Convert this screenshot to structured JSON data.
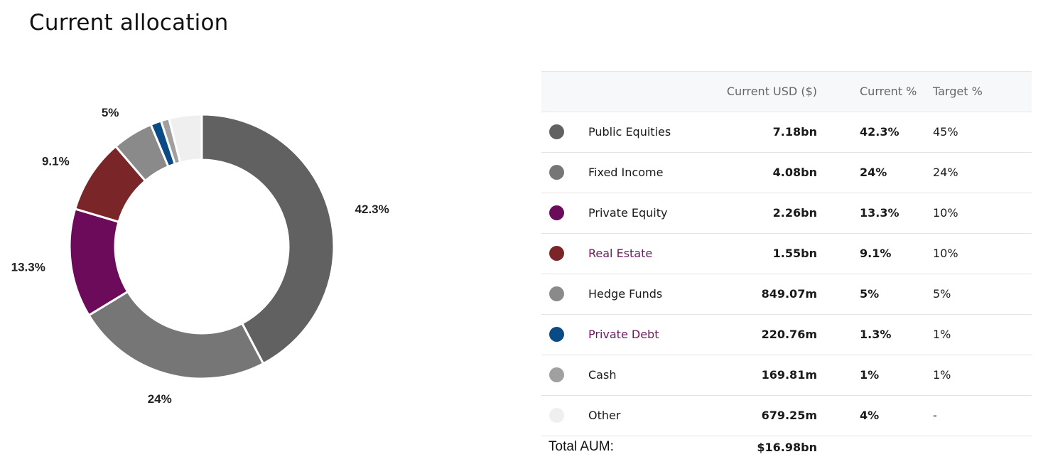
{
  "page": {
    "title": "Current allocation"
  },
  "table": {
    "headers": {
      "current_usd": "Current USD ($)",
      "current_pct": "Current %",
      "target_pct": "Target %"
    },
    "rows": [
      {
        "name": "Public Equities",
        "usd": "7.18bn",
        "current": "42.3%",
        "target": "45%",
        "color": "#616161",
        "link": false
      },
      {
        "name": "Fixed Income",
        "usd": "4.08bn",
        "current": "24%",
        "target": "24%",
        "color": "#767676",
        "link": false
      },
      {
        "name": "Private Equity",
        "usd": "2.26bn",
        "current": "13.3%",
        "target": "10%",
        "color": "#6b0b5a",
        "link": false
      },
      {
        "name": "Real Estate",
        "usd": "1.55bn",
        "current": "9.1%",
        "target": "10%",
        "color": "#7a2628",
        "link": true
      },
      {
        "name": "Hedge Funds",
        "usd": "849.07m",
        "current": "5%",
        "target": "5%",
        "color": "#8a8a8a",
        "link": false
      },
      {
        "name": "Private Debt",
        "usd": "220.76m",
        "current": "1.3%",
        "target": "1%",
        "color": "#0a4a85",
        "link": true
      },
      {
        "name": "Cash",
        "usd": "169.81m",
        "current": "1%",
        "target": "1%",
        "color": "#a0a0a0",
        "link": false
      },
      {
        "name": "Other",
        "usd": "679.25m",
        "current": "4%",
        "target": "-",
        "color": "#efefef",
        "link": false
      }
    ],
    "total_label": "Total AUM:",
    "total_value": "$16.98bn"
  },
  "chart_data": {
    "type": "pie",
    "categories": [
      "Public Equities",
      "Fixed Income",
      "Private Equity",
      "Real Estate",
      "Hedge Funds",
      "Private Debt",
      "Cash",
      "Other"
    ],
    "values": [
      42.3,
      24,
      13.3,
      9.1,
      5,
      1.3,
      1,
      4
    ],
    "colors": [
      "#616161",
      "#767676",
      "#6b0b5a",
      "#7a2628",
      "#8a8a8a",
      "#0a4a85",
      "#a0a0a0",
      "#efefef"
    ],
    "data_labels": [
      "42.3%",
      "24%",
      "13.3%",
      "9.1%",
      "5%",
      "",
      "",
      ""
    ],
    "donut": true,
    "legend": "table-right"
  }
}
